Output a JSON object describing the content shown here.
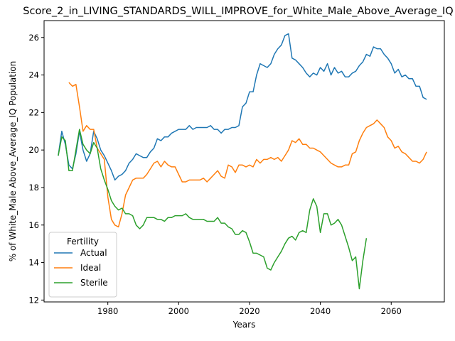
{
  "chart_data": {
    "type": "line",
    "title": "Score_2_in_LIVING_STANDARDS_WILL_IMPROVE_for_White_Male_Above_Average_IQ",
    "xlabel": "Years",
    "ylabel": "% of White_Male Above_Average_IQ Population",
    "xlim": [
      1962,
      2075
    ],
    "ylim": [
      11.9,
      26.9
    ],
    "xticks": [
      1980,
      2000,
      2020,
      2040,
      2060
    ],
    "yticks": [
      12,
      14,
      16,
      18,
      20,
      22,
      24,
      26
    ],
    "grid": false,
    "legend": {
      "title": "Fertility",
      "placement": "lower-left"
    },
    "series": [
      {
        "name": "Actual",
        "color": "#1f77b4",
        "points": [
          [
            1966,
            19.7
          ],
          [
            1967,
            21.0
          ],
          [
            1968,
            20.3
          ],
          [
            1969,
            19.2
          ],
          [
            1970,
            19.0
          ],
          [
            1971,
            19.8
          ],
          [
            1972,
            21.0
          ],
          [
            1973,
            20.0
          ],
          [
            1974,
            19.4
          ],
          [
            1975,
            19.8
          ],
          [
            1976,
            21.0
          ],
          [
            1977,
            20.6
          ],
          [
            1978,
            20.0
          ],
          [
            1979,
            19.7
          ],
          [
            1980,
            19.3
          ],
          [
            1981,
            18.9
          ],
          [
            1982,
            18.4
          ],
          [
            1983,
            18.6
          ],
          [
            1984,
            18.7
          ],
          [
            1985,
            18.9
          ],
          [
            1986,
            19.3
          ],
          [
            1987,
            19.5
          ],
          [
            1988,
            19.8
          ],
          [
            1989,
            19.7
          ],
          [
            1990,
            19.6
          ],
          [
            1991,
            19.6
          ],
          [
            1992,
            19.9
          ],
          [
            1993,
            20.1
          ],
          [
            1994,
            20.6
          ],
          [
            1995,
            20.5
          ],
          [
            1996,
            20.7
          ],
          [
            1997,
            20.7
          ],
          [
            1998,
            20.9
          ],
          [
            1999,
            21.0
          ],
          [
            2000,
            21.1
          ],
          [
            2001,
            21.1
          ],
          [
            2002,
            21.1
          ],
          [
            2003,
            21.3
          ],
          [
            2004,
            21.1
          ],
          [
            2005,
            21.2
          ],
          [
            2006,
            21.2
          ],
          [
            2007,
            21.2
          ],
          [
            2008,
            21.2
          ],
          [
            2009,
            21.3
          ],
          [
            2010,
            21.1
          ],
          [
            2011,
            21.1
          ],
          [
            2012,
            20.9
          ],
          [
            2013,
            21.1
          ],
          [
            2014,
            21.1
          ],
          [
            2015,
            21.2
          ],
          [
            2016,
            21.2
          ],
          [
            2017,
            21.3
          ],
          [
            2018,
            22.3
          ],
          [
            2019,
            22.5
          ],
          [
            2020,
            23.1
          ],
          [
            2021,
            23.1
          ],
          [
            2022,
            24.0
          ],
          [
            2023,
            24.6
          ],
          [
            2024,
            24.5
          ],
          [
            2025,
            24.4
          ],
          [
            2026,
            24.6
          ],
          [
            2027,
            25.1
          ],
          [
            2028,
            25.4
          ],
          [
            2029,
            25.6
          ],
          [
            2030,
            26.1
          ],
          [
            2031,
            26.2
          ],
          [
            2032,
            24.9
          ],
          [
            2033,
            24.8
          ],
          [
            2034,
            24.6
          ],
          [
            2035,
            24.4
          ],
          [
            2036,
            24.1
          ],
          [
            2037,
            23.9
          ],
          [
            2038,
            24.1
          ],
          [
            2039,
            24.0
          ],
          [
            2040,
            24.4
          ],
          [
            2041,
            24.2
          ],
          [
            2042,
            24.6
          ],
          [
            2043,
            24.0
          ],
          [
            2044,
            24.4
          ],
          [
            2045,
            24.1
          ],
          [
            2046,
            24.2
          ],
          [
            2047,
            23.9
          ],
          [
            2048,
            23.9
          ],
          [
            2049,
            24.1
          ],
          [
            2050,
            24.2
          ],
          [
            2051,
            24.5
          ],
          [
            2052,
            24.7
          ],
          [
            2053,
            25.1
          ],
          [
            2054,
            25.0
          ],
          [
            2055,
            25.5
          ],
          [
            2056,
            25.4
          ],
          [
            2057,
            25.4
          ],
          [
            2058,
            25.1
          ],
          [
            2059,
            24.9
          ],
          [
            2060,
            24.6
          ],
          [
            2061,
            24.1
          ],
          [
            2062,
            24.3
          ],
          [
            2063,
            23.9
          ],
          [
            2064,
            24.0
          ],
          [
            2065,
            23.8
          ],
          [
            2066,
            23.8
          ],
          [
            2067,
            23.4
          ],
          [
            2068,
            23.4
          ],
          [
            2069,
            22.8
          ],
          [
            2070,
            22.7
          ]
        ]
      },
      {
        "name": "Ideal",
        "color": "#ff7f0e",
        "points": [
          [
            1969,
            23.6
          ],
          [
            1970,
            23.4
          ],
          [
            1971,
            23.5
          ],
          [
            1972,
            22.3
          ],
          [
            1973,
            21.0
          ],
          [
            1974,
            21.3
          ],
          [
            1975,
            21.1
          ],
          [
            1976,
            21.1
          ],
          [
            1977,
            20.1
          ],
          [
            1978,
            19.8
          ],
          [
            1979,
            19.5
          ],
          [
            1980,
            17.5
          ],
          [
            1981,
            16.3
          ],
          [
            1982,
            16.0
          ],
          [
            1983,
            15.9
          ],
          [
            1984,
            16.6
          ],
          [
            1985,
            17.6
          ],
          [
            1986,
            18.0
          ],
          [
            1987,
            18.4
          ],
          [
            1988,
            18.5
          ],
          [
            1989,
            18.5
          ],
          [
            1990,
            18.5
          ],
          [
            1991,
            18.7
          ],
          [
            1992,
            19.0
          ],
          [
            1993,
            19.3
          ],
          [
            1994,
            19.4
          ],
          [
            1995,
            19.1
          ],
          [
            1996,
            19.4
          ],
          [
            1997,
            19.2
          ],
          [
            1998,
            19.1
          ],
          [
            1999,
            19.1
          ],
          [
            2000,
            18.7
          ],
          [
            2001,
            18.3
          ],
          [
            2002,
            18.3
          ],
          [
            2003,
            18.4
          ],
          [
            2004,
            18.4
          ],
          [
            2005,
            18.4
          ],
          [
            2006,
            18.4
          ],
          [
            2007,
            18.5
          ],
          [
            2008,
            18.3
          ],
          [
            2009,
            18.5
          ],
          [
            2010,
            18.7
          ],
          [
            2011,
            18.9
          ],
          [
            2012,
            18.6
          ],
          [
            2013,
            18.5
          ],
          [
            2014,
            19.2
          ],
          [
            2015,
            19.1
          ],
          [
            2016,
            18.8
          ],
          [
            2017,
            19.2
          ],
          [
            2018,
            19.2
          ],
          [
            2019,
            19.1
          ],
          [
            2020,
            19.2
          ],
          [
            2021,
            19.1
          ],
          [
            2022,
            19.5
          ],
          [
            2023,
            19.3
          ],
          [
            2024,
            19.5
          ],
          [
            2025,
            19.5
          ],
          [
            2026,
            19.6
          ],
          [
            2027,
            19.5
          ],
          [
            2028,
            19.6
          ],
          [
            2029,
            19.4
          ],
          [
            2030,
            19.7
          ],
          [
            2031,
            20.0
          ],
          [
            2032,
            20.5
          ],
          [
            2033,
            20.4
          ],
          [
            2034,
            20.6
          ],
          [
            2035,
            20.3
          ],
          [
            2036,
            20.3
          ],
          [
            2037,
            20.1
          ],
          [
            2038,
            20.1
          ],
          [
            2039,
            20.0
          ],
          [
            2040,
            19.9
          ],
          [
            2041,
            19.7
          ],
          [
            2042,
            19.5
          ],
          [
            2043,
            19.3
          ],
          [
            2044,
            19.2
          ],
          [
            2045,
            19.1
          ],
          [
            2046,
            19.1
          ],
          [
            2047,
            19.2
          ],
          [
            2048,
            19.2
          ],
          [
            2049,
            19.8
          ],
          [
            2050,
            19.9
          ],
          [
            2051,
            20.5
          ],
          [
            2052,
            20.9
          ],
          [
            2053,
            21.2
          ],
          [
            2054,
            21.3
          ],
          [
            2055,
            21.4
          ],
          [
            2056,
            21.6
          ],
          [
            2057,
            21.4
          ],
          [
            2058,
            21.2
          ],
          [
            2059,
            20.7
          ],
          [
            2060,
            20.5
          ],
          [
            2061,
            20.1
          ],
          [
            2062,
            20.2
          ],
          [
            2063,
            19.9
          ],
          [
            2064,
            19.8
          ],
          [
            2065,
            19.6
          ],
          [
            2066,
            19.4
          ],
          [
            2067,
            19.4
          ],
          [
            2068,
            19.3
          ],
          [
            2069,
            19.5
          ],
          [
            2070,
            19.9
          ]
        ]
      },
      {
        "name": "Sterile",
        "color": "#2ca02c",
        "points": [
          [
            1966,
            19.7
          ],
          [
            1967,
            20.7
          ],
          [
            1968,
            20.5
          ],
          [
            1969,
            18.9
          ],
          [
            1970,
            18.9
          ],
          [
            1971,
            20.0
          ],
          [
            1972,
            21.1
          ],
          [
            1973,
            20.3
          ],
          [
            1974,
            20.0
          ],
          [
            1975,
            19.8
          ],
          [
            1976,
            20.4
          ],
          [
            1977,
            20.1
          ],
          [
            1978,
            19.0
          ],
          [
            1979,
            18.4
          ],
          [
            1980,
            17.9
          ],
          [
            1981,
            17.3
          ],
          [
            1982,
            17.0
          ],
          [
            1983,
            16.8
          ],
          [
            1984,
            16.9
          ],
          [
            1985,
            16.6
          ],
          [
            1986,
            16.6
          ],
          [
            1987,
            16.5
          ],
          [
            1988,
            16.0
          ],
          [
            1989,
            15.8
          ],
          [
            1990,
            16.0
          ],
          [
            1991,
            16.4
          ],
          [
            1992,
            16.4
          ],
          [
            1993,
            16.4
          ],
          [
            1994,
            16.3
          ],
          [
            1995,
            16.3
          ],
          [
            1996,
            16.2
          ],
          [
            1997,
            16.4
          ],
          [
            1998,
            16.4
          ],
          [
            1999,
            16.5
          ],
          [
            2000,
            16.5
          ],
          [
            2001,
            16.5
          ],
          [
            2002,
            16.6
          ],
          [
            2003,
            16.4
          ],
          [
            2004,
            16.3
          ],
          [
            2005,
            16.3
          ],
          [
            2006,
            16.3
          ],
          [
            2007,
            16.3
          ],
          [
            2008,
            16.2
          ],
          [
            2009,
            16.2
          ],
          [
            2010,
            16.2
          ],
          [
            2011,
            16.4
          ],
          [
            2012,
            16.1
          ],
          [
            2013,
            16.1
          ],
          [
            2014,
            15.9
          ],
          [
            2015,
            15.8
          ],
          [
            2016,
            15.5
          ],
          [
            2017,
            15.5
          ],
          [
            2018,
            15.7
          ],
          [
            2019,
            15.6
          ],
          [
            2020,
            15.1
          ],
          [
            2021,
            14.5
          ],
          [
            2022,
            14.5
          ],
          [
            2023,
            14.4
          ],
          [
            2024,
            14.3
          ],
          [
            2025,
            13.7
          ],
          [
            2026,
            13.6
          ],
          [
            2027,
            14.0
          ],
          [
            2028,
            14.3
          ],
          [
            2029,
            14.6
          ],
          [
            2030,
            15.0
          ],
          [
            2031,
            15.3
          ],
          [
            2032,
            15.4
          ],
          [
            2033,
            15.2
          ],
          [
            2034,
            15.6
          ],
          [
            2035,
            15.7
          ],
          [
            2036,
            15.6
          ],
          [
            2037,
            16.8
          ],
          [
            2038,
            17.4
          ],
          [
            2039,
            17.0
          ],
          [
            2040,
            15.6
          ],
          [
            2041,
            16.6
          ],
          [
            2042,
            16.6
          ],
          [
            2043,
            16.0
          ],
          [
            2044,
            16.1
          ],
          [
            2045,
            16.3
          ],
          [
            2046,
            16.0
          ],
          [
            2047,
            15.4
          ],
          [
            2048,
            14.8
          ],
          [
            2049,
            14.1
          ],
          [
            2050,
            14.3
          ],
          [
            2051,
            12.6
          ],
          [
            2052,
            14.1
          ],
          [
            2053,
            15.3
          ]
        ]
      }
    ]
  }
}
